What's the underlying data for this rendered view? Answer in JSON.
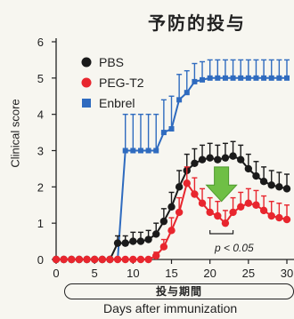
{
  "title": "予防的投与",
  "chart_data": {
    "type": "line",
    "xlabel": "Days after immunization",
    "ylabel": "Clinical score",
    "xlim": [
      0,
      30
    ],
    "ylim": [
      0,
      6
    ],
    "xticks": [
      0,
      5,
      10,
      15,
      20,
      25,
      30
    ],
    "yticks": [
      0,
      1,
      2,
      3,
      4,
      5,
      6
    ],
    "x": [
      0,
      1,
      2,
      3,
      4,
      5,
      6,
      7,
      8,
      9,
      10,
      11,
      12,
      13,
      14,
      15,
      16,
      17,
      18,
      19,
      20,
      21,
      22,
      23,
      24,
      25,
      26,
      27,
      28,
      29,
      30
    ],
    "legend_position": "top-left",
    "series": [
      {
        "name": "PBS",
        "color": "#1a1a1a",
        "marker": "circle",
        "values": [
          0,
          0,
          0,
          0,
          0,
          0,
          0,
          0,
          0.45,
          0.45,
          0.5,
          0.5,
          0.55,
          0.7,
          1.05,
          1.45,
          2.0,
          2.45,
          2.65,
          2.75,
          2.8,
          2.75,
          2.8,
          2.85,
          2.75,
          2.5,
          2.3,
          2.15,
          2.05,
          2.0,
          1.95
        ],
        "error": [
          0,
          0,
          0,
          0,
          0,
          0,
          0,
          0,
          0.2,
          0.2,
          0.25,
          0.25,
          0.25,
          0.3,
          0.35,
          0.4,
          0.45,
          0.45,
          0.4,
          0.4,
          0.4,
          0.4,
          0.4,
          0.4,
          0.4,
          0.4,
          0.4,
          0.4,
          0.4,
          0.4,
          0.4
        ]
      },
      {
        "name": "PEG-T2",
        "color": "#e8262e",
        "marker": "circle",
        "values": [
          0,
          0,
          0,
          0,
          0,
          0,
          0,
          0,
          0,
          0,
          0,
          0,
          0,
          0.1,
          0.35,
          0.8,
          1.3,
          2.1,
          1.8,
          1.55,
          1.3,
          1.2,
          1.0,
          1.3,
          1.45,
          1.55,
          1.5,
          1.35,
          1.2,
          1.15,
          1.1
        ],
        "error": [
          0,
          0,
          0,
          0,
          0,
          0,
          0,
          0,
          0,
          0,
          0,
          0,
          0,
          0.1,
          0.2,
          0.35,
          0.4,
          0.45,
          0.45,
          0.4,
          0.4,
          0.4,
          0.35,
          0.4,
          0.4,
          0.4,
          0.4,
          0.4,
          0.4,
          0.4,
          0.4
        ]
      },
      {
        "name": "Enbrel",
        "color": "#2f6bbf",
        "marker": "square",
        "values": [
          0,
          0,
          0,
          0,
          0,
          0,
          0,
          0,
          0,
          3.0,
          3.0,
          3.0,
          3.0,
          3.0,
          3.5,
          3.6,
          4.4,
          4.6,
          4.9,
          4.95,
          5.0,
          5.0,
          5.0,
          5.0,
          5.0,
          5.0,
          5.0,
          5.0,
          5.0,
          5.0,
          5.0
        ],
        "error": [
          0,
          0,
          0,
          0,
          0,
          0,
          0,
          0,
          0,
          1.0,
          1.0,
          1.0,
          1.0,
          1.0,
          0.9,
          0.9,
          0.7,
          0.6,
          0.5,
          0.5,
          0.5,
          0.5,
          0.5,
          0.5,
          0.5,
          0.5,
          0.5,
          0.5,
          0.5,
          0.5,
          0.5
        ]
      }
    ],
    "annotations": {
      "pvalue": "p < 0.05",
      "period_label": "投与期間",
      "significance_range": [
        20,
        23
      ],
      "arrow_color": "#6fbf45"
    }
  }
}
